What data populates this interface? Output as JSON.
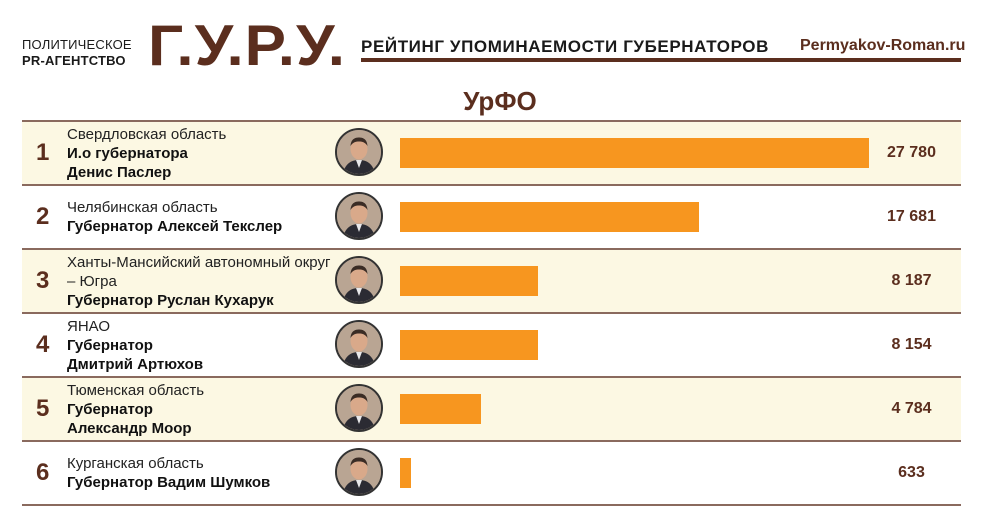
{
  "header": {
    "agency_line1": "ПОЛИТИЧЕСКОЕ",
    "agency_line2": "PR-АГЕНТСТВО",
    "logo": "Г.У.Р.У.",
    "rating_title": "РЕЙТИНГ УПОМИНАЕМОСТИ ГУБЕРНАТОРОВ",
    "site": "Permyakov-Roman.ru"
  },
  "region_title": "УрФО",
  "colors": {
    "brand": "#5b2e1e",
    "bar": "#f7961f",
    "row_shade": "#fcf8e3"
  },
  "rows": [
    {
      "rank": "1",
      "region": "Свердловская область",
      "post_lines": [
        "И.о губернатора",
        "Денис Паслер"
      ],
      "value_label": "27 780",
      "avatar_icon": "person-portrait-icon"
    },
    {
      "rank": "2",
      "region": "Челябинская область",
      "post_lines": [
        "Губернатор Алексей Текслер"
      ],
      "value_label": "17 681",
      "avatar_icon": "person-portrait-icon"
    },
    {
      "rank": "3",
      "region": "Ханты-Мансийский автономный округ – Югра",
      "post_lines": [
        "Губернатор Руслан Кухарук"
      ],
      "value_label": "8 187",
      "avatar_icon": "person-portrait-icon"
    },
    {
      "rank": "4",
      "region": "ЯНАО",
      "post_lines": [
        "Губернатор",
        "Дмитрий Артюхов"
      ],
      "value_label": "8 154",
      "avatar_icon": "person-portrait-icon"
    },
    {
      "rank": "5",
      "region": "Тюменская область",
      "post_lines": [
        "Губернатор",
        "Александр Моор"
      ],
      "value_label": "4 784",
      "avatar_icon": "person-portrait-icon"
    },
    {
      "rank": "6",
      "region": "Курганская область",
      "post_lines": [
        "Губернатор Вадим Шумков"
      ],
      "value_label": "633",
      "avatar_icon": "person-portrait-icon"
    }
  ],
  "chart_data": {
    "type": "bar",
    "orientation": "horizontal",
    "title": "УрФО",
    "categories": [
      "Денис Паслер",
      "Алексей Текслер",
      "Руслан Кухарук",
      "Дмитрий Артюхов",
      "Александр Моор",
      "Вадим Шумков"
    ],
    "values": [
      27780,
      17681,
      8187,
      8154,
      4784,
      633
    ],
    "xlim": [
      0,
      27780
    ]
  }
}
